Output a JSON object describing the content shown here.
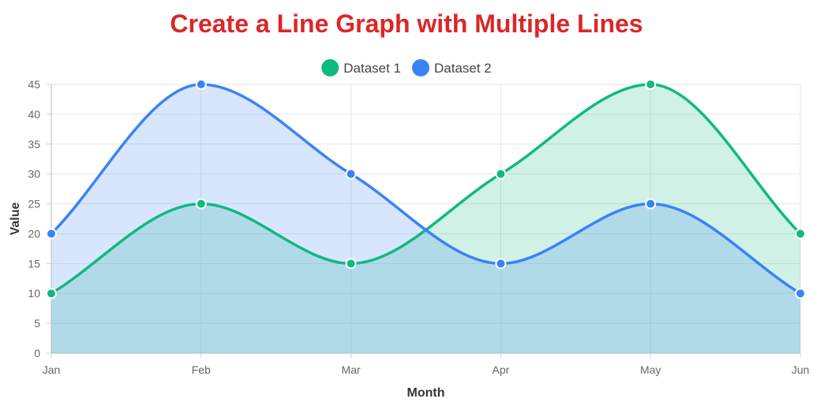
{
  "chart_data": {
    "type": "line",
    "title": "Create a Line Graph with Multiple Lines",
    "title_color": "#dc2626",
    "categories": [
      "Jan",
      "Feb",
      "Mar",
      "Apr",
      "May",
      "Jun"
    ],
    "xlabel": "Month",
    "ylabel": "Value",
    "ylim": [
      0,
      45
    ],
    "ytick_step": 5,
    "grid": true,
    "legend_position": "top-center",
    "fill": true,
    "smooth": true,
    "series": [
      {
        "name": "Dataset 1",
        "values": [
          10,
          25,
          15,
          30,
          45,
          20
        ],
        "color": "#10b981",
        "fill_color": "rgba(16,185,129,0.2)"
      },
      {
        "name": "Dataset 2",
        "values": [
          20,
          45,
          30,
          15,
          25,
          10
        ],
        "color": "#3b82f6",
        "fill_color": "rgba(59,130,246,0.2)"
      }
    ]
  }
}
